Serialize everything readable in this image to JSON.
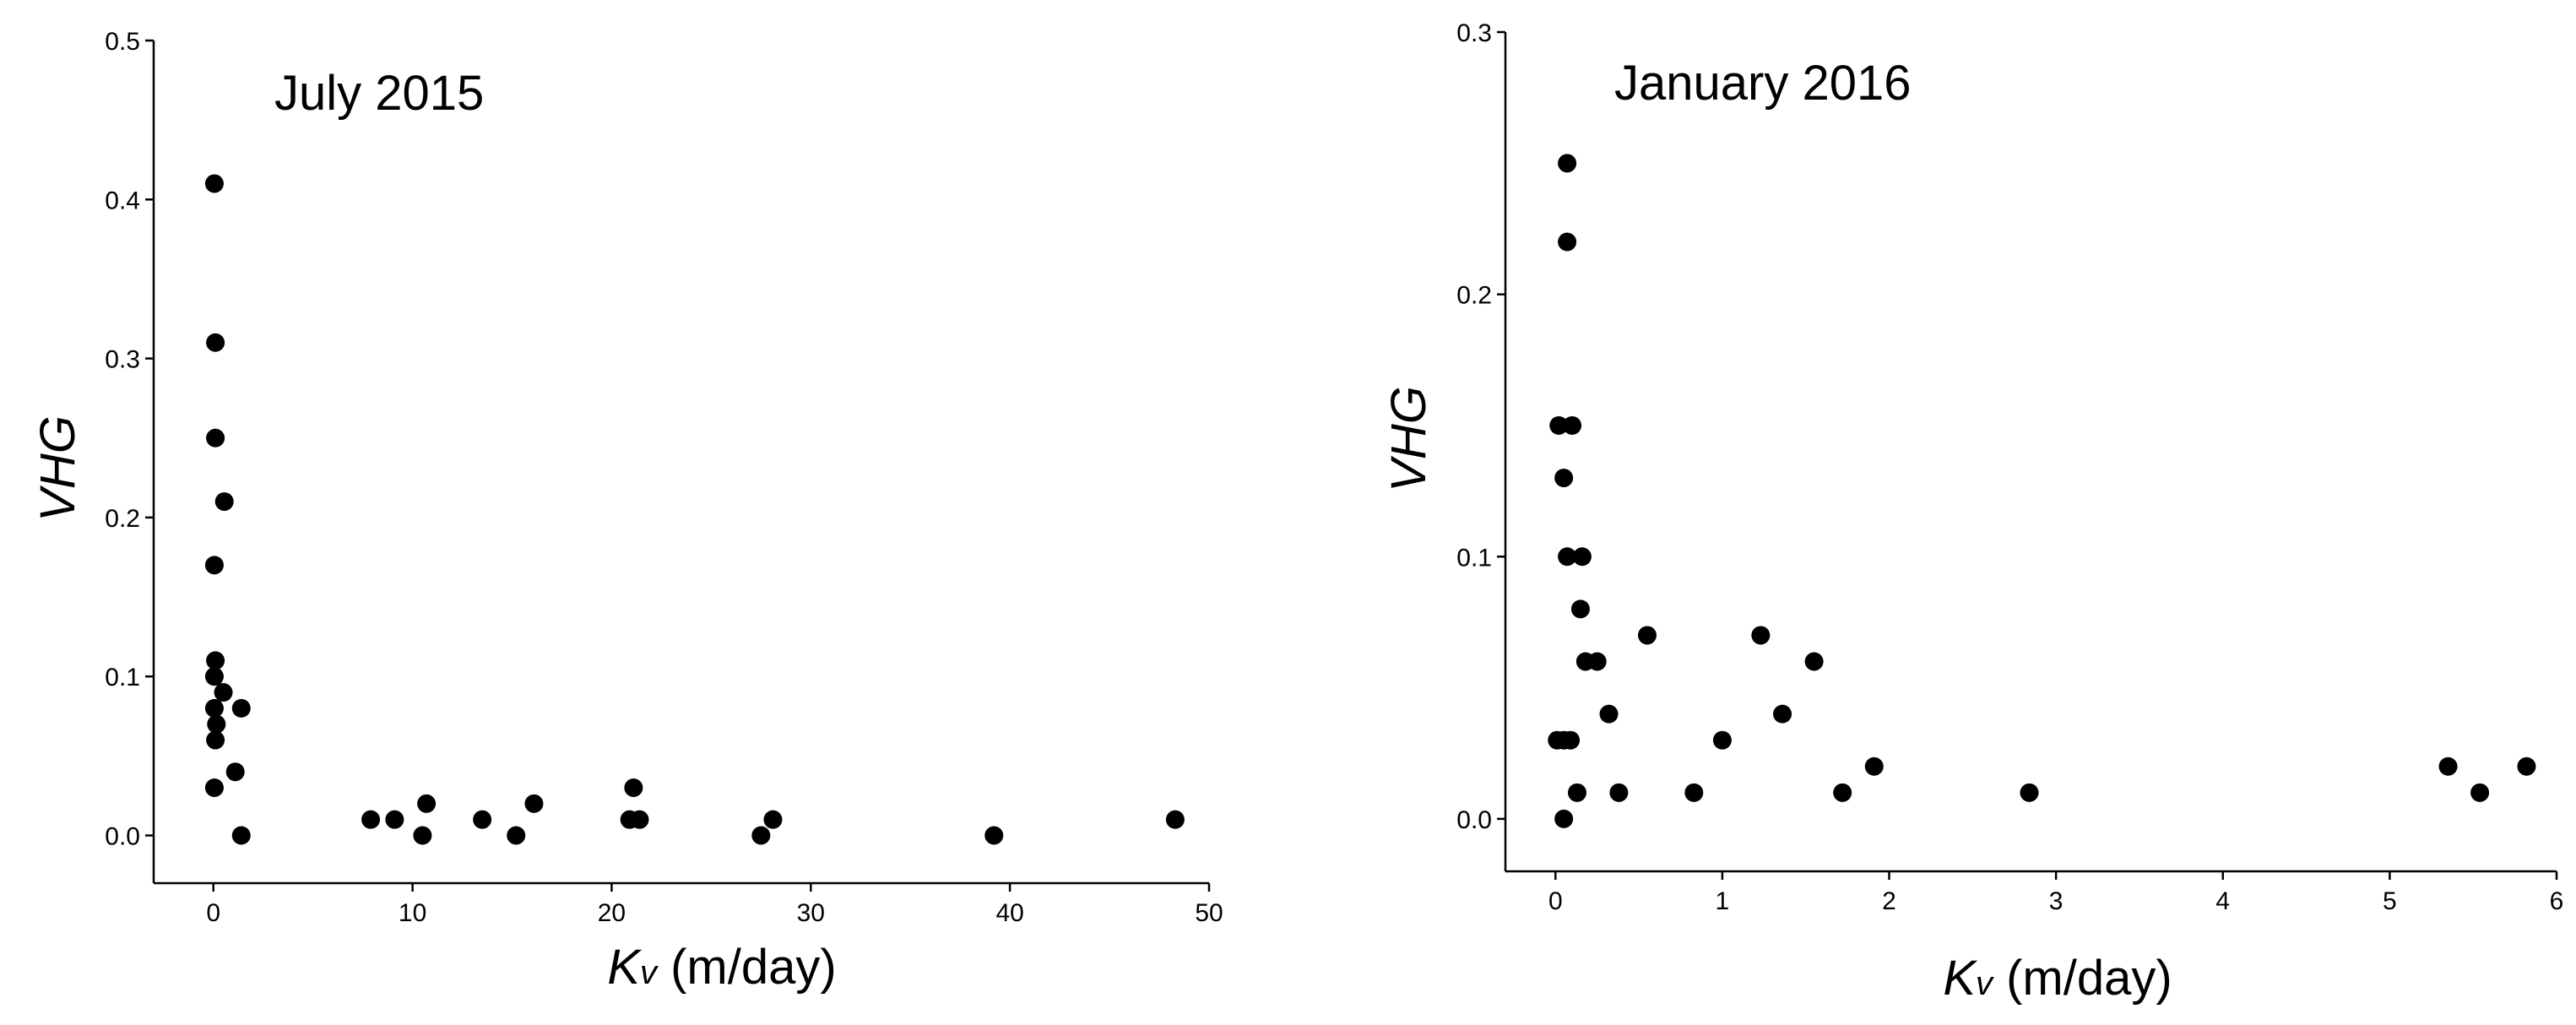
{
  "chart_data": [
    {
      "type": "scatter",
      "title": "July 2015",
      "xlabel_main": "K",
      "xlabel_sub": "v",
      "xlabel_unit": " (m/day)",
      "ylabel": "VHG",
      "xlim": [
        -3,
        50
      ],
      "ylim": [
        -0.03,
        0.5
      ],
      "xticks": [
        0,
        10,
        20,
        30,
        40,
        50
      ],
      "yticks": [
        0.0,
        0.1,
        0.2,
        0.3,
        0.4,
        0.5
      ],
      "xtick_labels": [
        "0",
        "10",
        "20",
        "30",
        "40",
        "50"
      ],
      "ytick_labels": [
        "0.0",
        "0.1",
        "0.2",
        "0.3",
        "0.4",
        "0.5"
      ],
      "marker_color": "#000000",
      "points": [
        {
          "x": 0.05,
          "y": 0.41
        },
        {
          "x": 0.1,
          "y": 0.31
        },
        {
          "x": 0.1,
          "y": 0.25
        },
        {
          "x": 0.55,
          "y": 0.21
        },
        {
          "x": 0.05,
          "y": 0.17
        },
        {
          "x": 0.1,
          "y": 0.11
        },
        {
          "x": 0.05,
          "y": 0.1
        },
        {
          "x": 0.5,
          "y": 0.09
        },
        {
          "x": 0.05,
          "y": 0.08
        },
        {
          "x": 1.4,
          "y": 0.08
        },
        {
          "x": 0.15,
          "y": 0.07
        },
        {
          "x": 0.1,
          "y": 0.06
        },
        {
          "x": 1.1,
          "y": 0.04
        },
        {
          "x": 0.05,
          "y": 0.03
        },
        {
          "x": 1.4,
          "y": 0.0
        },
        {
          "x": 7.9,
          "y": 0.01
        },
        {
          "x": 9.1,
          "y": 0.01
        },
        {
          "x": 10.5,
          "y": 0.0
        },
        {
          "x": 10.7,
          "y": 0.02
        },
        {
          "x": 13.5,
          "y": 0.01
        },
        {
          "x": 15.2,
          "y": 0.0
        },
        {
          "x": 16.1,
          "y": 0.02
        },
        {
          "x": 20.9,
          "y": 0.01
        },
        {
          "x": 21.1,
          "y": 0.03
        },
        {
          "x": 21.4,
          "y": 0.01
        },
        {
          "x": 27.5,
          "y": 0.0
        },
        {
          "x": 28.1,
          "y": 0.01
        },
        {
          "x": 39.2,
          "y": 0.0
        },
        {
          "x": 48.3,
          "y": 0.01
        }
      ]
    },
    {
      "type": "scatter",
      "title": "January 2016",
      "xlabel_main": "K",
      "xlabel_sub": "v",
      "xlabel_unit": " (m/day)",
      "ylabel": "VHG",
      "xlim": [
        -0.3,
        6
      ],
      "ylim": [
        -0.02,
        0.3
      ],
      "xticks": [
        0,
        1,
        2,
        3,
        4,
        5,
        6
      ],
      "yticks": [
        0.0,
        0.1,
        0.2,
        0.3
      ],
      "xtick_labels": [
        "0",
        "1",
        "2",
        "3",
        "4",
        "5",
        "6"
      ],
      "ytick_labels": [
        "0.0",
        "0.1",
        "0.2",
        "0.3"
      ],
      "marker_color": "#000000",
      "points": [
        {
          "x": 0.07,
          "y": 0.25
        },
        {
          "x": 0.07,
          "y": 0.22
        },
        {
          "x": 0.02,
          "y": 0.15
        },
        {
          "x": 0.1,
          "y": 0.15
        },
        {
          "x": 0.05,
          "y": 0.13
        },
        {
          "x": 0.07,
          "y": 0.1
        },
        {
          "x": 0.16,
          "y": 0.1
        },
        {
          "x": 0.15,
          "y": 0.08
        },
        {
          "x": 0.55,
          "y": 0.07
        },
        {
          "x": 1.23,
          "y": 0.07
        },
        {
          "x": 0.18,
          "y": 0.06
        },
        {
          "x": 0.25,
          "y": 0.06
        },
        {
          "x": 1.55,
          "y": 0.06
        },
        {
          "x": 0.32,
          "y": 0.04
        },
        {
          "x": 1.36,
          "y": 0.04
        },
        {
          "x": 0.01,
          "y": 0.03
        },
        {
          "x": 0.05,
          "y": 0.03
        },
        {
          "x": 0.09,
          "y": 0.03
        },
        {
          "x": 1.0,
          "y": 0.03
        },
        {
          "x": 1.91,
          "y": 0.02
        },
        {
          "x": 5.35,
          "y": 0.02
        },
        {
          "x": 5.82,
          "y": 0.02
        },
        {
          "x": 0.13,
          "y": 0.01
        },
        {
          "x": 0.38,
          "y": 0.01
        },
        {
          "x": 0.83,
          "y": 0.01
        },
        {
          "x": 1.72,
          "y": 0.01
        },
        {
          "x": 2.84,
          "y": 0.01
        },
        {
          "x": 5.54,
          "y": 0.01
        },
        {
          "x": 0.05,
          "y": 0.0
        }
      ]
    }
  ]
}
